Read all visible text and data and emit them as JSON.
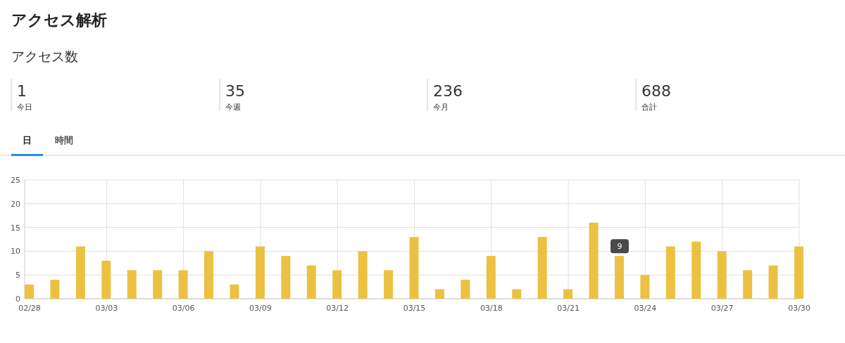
{
  "chart_data": {
    "type": "bar",
    "title": "アクセス解析",
    "subtitle": "アクセス数",
    "categories": [
      "02/28",
      null,
      null,
      "03/03",
      null,
      null,
      "03/06",
      null,
      null,
      "03/09",
      null,
      null,
      "03/12",
      null,
      null,
      "03/15",
      null,
      null,
      "03/18",
      null,
      null,
      "03/21",
      null,
      null,
      "03/24",
      null,
      null,
      "03/27",
      null,
      null,
      "03/30"
    ],
    "values": [
      3,
      4,
      11,
      8,
      6,
      6,
      6,
      10,
      3,
      11,
      9,
      7,
      6,
      10,
      6,
      13,
      2,
      4,
      9,
      2,
      13,
      2,
      16,
      9,
      5,
      11,
      12,
      10,
      6,
      7,
      11
    ],
    "color": "#ecc142",
    "ylim": [
      0,
      25
    ],
    "yticks": [
      0,
      5,
      10,
      15,
      20,
      25
    ],
    "grid": true,
    "annotations": [
      "1",
      "今日",
      "35",
      "今週",
      "236",
      "今月",
      "688",
      "合計",
      "日",
      "時間",
      {
        "text": "9",
        "y": 9
      }
    ]
  }
}
